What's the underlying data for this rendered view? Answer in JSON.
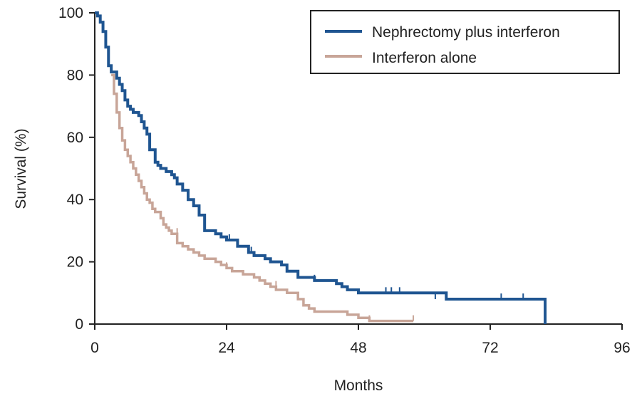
{
  "chart_data": {
    "type": "line",
    "xlabel": "Months",
    "ylabel": "Survival (%)",
    "xlim": [
      0,
      96
    ],
    "ylim": [
      0,
      100
    ],
    "xticks": [
      0,
      24,
      48,
      72,
      96
    ],
    "yticks": [
      0,
      20,
      40,
      60,
      80,
      100
    ],
    "xtick_labels": [
      "0",
      "24",
      "48",
      "72",
      "96"
    ],
    "ytick_labels": [
      "0",
      "20",
      "40",
      "60",
      "80",
      "100"
    ],
    "grid": false,
    "legend_position": "top-right",
    "series": [
      {
        "name": "Nephrectomy plus interferon",
        "color": "#1f5591",
        "step": true,
        "x": [
          0,
          0.5,
          1.0,
          1.5,
          2.0,
          2.5,
          3.0,
          4.0,
          4.5,
          5.0,
          5.5,
          6.0,
          6.5,
          7.0,
          8.0,
          8.5,
          9.0,
          9.5,
          10.0,
          11.0,
          11.5,
          12.0,
          13.0,
          14.0,
          14.5,
          15.0,
          16.0,
          17.0,
          18.0,
          19.0,
          20.0,
          22.0,
          23.0,
          24.0,
          26.0,
          28.0,
          29.0,
          31.0,
          32.0,
          34.0,
          35.0,
          37.0,
          40.0,
          44.0,
          45.0,
          46.0,
          48.0,
          53.0,
          54.0,
          57.0,
          58.0,
          64.0,
          82.0,
          82.0
        ],
        "y": [
          100,
          99,
          97,
          94,
          89,
          83,
          81,
          79,
          77,
          75,
          72,
          70,
          69,
          68,
          67,
          65,
          63,
          61,
          56,
          52,
          51,
          50,
          49,
          48,
          47,
          45,
          43,
          40,
          38,
          35,
          30,
          29,
          28,
          27,
          25,
          23,
          22,
          21,
          20,
          19,
          17,
          15,
          14,
          13,
          12,
          11,
          10,
          10,
          10,
          10,
          10,
          8,
          8,
          0
        ],
        "censor_x": [
          24.5,
          28.5,
          40.0,
          53.0,
          54.0,
          55.5,
          62.0,
          74.0,
          78.0
        ],
        "censor_y": [
          27,
          23,
          14,
          10,
          10,
          10,
          8,
          8,
          8
        ]
      },
      {
        "name": "Interferon alone",
        "color": "#c8a598",
        "step": true,
        "x": [
          3.0,
          3.5,
          4.0,
          4.5,
          5.0,
          5.5,
          6.0,
          6.5,
          7.0,
          7.5,
          8.0,
          8.5,
          9.0,
          9.5,
          10.0,
          10.5,
          11.0,
          12.0,
          12.5,
          13.0,
          13.5,
          14.0,
          15.0,
          16.0,
          17.0,
          18.0,
          19.0,
          20.0,
          22.0,
          23.0,
          24.0,
          25.0,
          27.0,
          29.0,
          30.0,
          31.0,
          32.0,
          33.0,
          35.0,
          37.0,
          38.0,
          39.0,
          40.0,
          42.0,
          46.0,
          48.0,
          50.0,
          52.0,
          55.0,
          58.0
        ],
        "y": [
          80,
          74,
          68,
          63,
          59,
          56,
          54,
          52,
          50,
          48,
          46,
          44,
          42,
          40,
          39,
          37,
          36,
          34,
          32,
          31,
          30,
          29,
          26,
          25,
          24,
          23,
          22,
          21,
          20,
          19,
          18,
          17,
          16,
          15,
          14,
          13,
          12,
          11,
          10,
          8,
          6,
          5,
          4,
          4,
          3,
          2,
          1,
          1,
          1,
          1
        ],
        "censor_x": [
          15.0,
          24.0,
          33.0,
          50.0,
          58.0
        ],
        "censor_y": [
          29,
          18,
          12,
          1,
          1
        ]
      }
    ]
  }
}
